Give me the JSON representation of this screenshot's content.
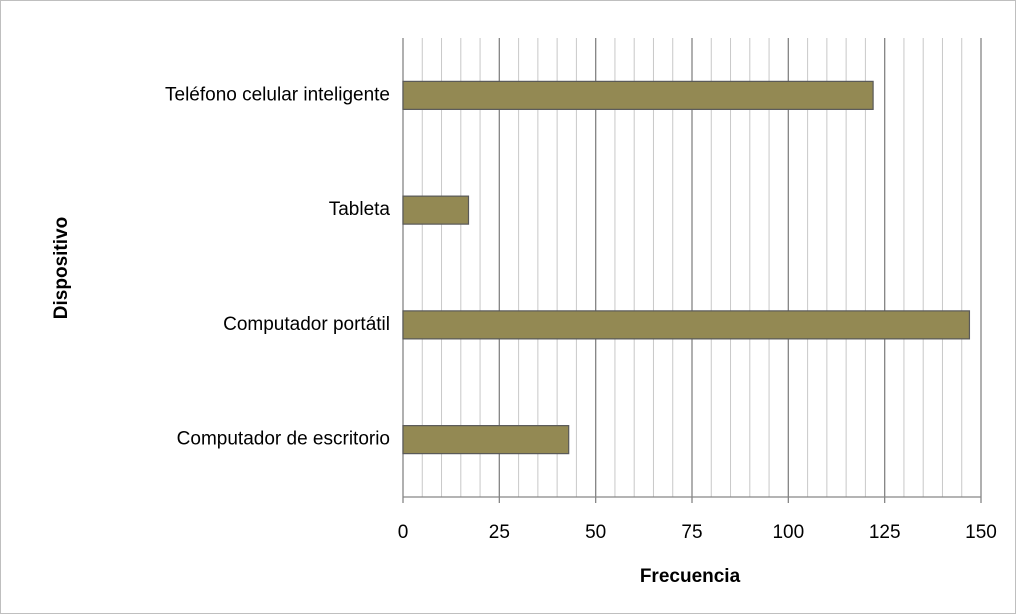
{
  "chart_data": {
    "type": "barh",
    "categories": [
      "Teléfono celular inteligente",
      "Tableta",
      "Computador portátil",
      "Computador de escritorio"
    ],
    "values": [
      122,
      17,
      147,
      43
    ],
    "color": "#938953",
    "xlabel": "Frecuencia",
    "ylabel": "Dispositivo",
    "xlim": [
      0,
      150
    ],
    "xticks": [
      0,
      25,
      50,
      75,
      100,
      125,
      150
    ],
    "grid": true,
    "minor_grid_step": 5
  }
}
